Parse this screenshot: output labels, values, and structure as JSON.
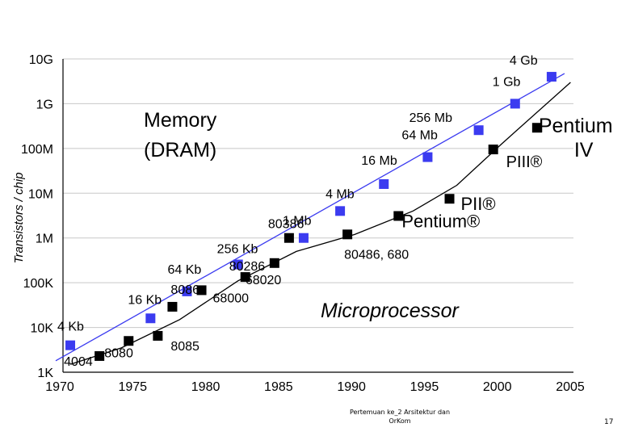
{
  "chart_data": {
    "type": "scatter",
    "ylabel": "Transistors / chip",
    "y_scale": "log",
    "ylim": [
      1000,
      10000000000
    ],
    "xlim": [
      1970,
      2005
    ],
    "x_ticks": [
      "1970",
      "1975",
      "1980",
      "1985",
      "1990",
      "1995",
      "2000",
      "2005"
    ],
    "y_ticks": [
      {
        "value": 1000,
        "label": "1K"
      },
      {
        "value": 10000,
        "label": "10K"
      },
      {
        "value": 100000,
        "label": "100K"
      },
      {
        "value": 1000000,
        "label": "1M"
      },
      {
        "value": 10000000,
        "label": "10M"
      },
      {
        "value": 100000000,
        "label": "100M"
      },
      {
        "value": 1000000000,
        "label": "1G"
      },
      {
        "value": 10000000000,
        "label": "10G"
      }
    ],
    "grid": true,
    "annotations": [
      "Memory",
      "(DRAM)",
      "Microprocessor"
    ],
    "series": [
      {
        "color": "#3b3bf0",
        "marker": "square",
        "points": [
          {
            "x": 1970.5,
            "y": 4000,
            "label": "4 Kb"
          },
          {
            "x": 1976,
            "y": 16000,
            "label": "16 Kb"
          },
          {
            "x": 1978.5,
            "y": 64000,
            "label": "64 Kb"
          },
          {
            "x": 1982,
            "y": 256000,
            "label": "256 Kb"
          },
          {
            "x": 1986.5,
            "y": 1000000,
            "label": "1 Mb"
          },
          {
            "x": 1989,
            "y": 4000000,
            "label": "4 Mb"
          },
          {
            "x": 1992,
            "y": 16000000,
            "label": "16 Mb"
          },
          {
            "x": 1995,
            "y": 64000000,
            "label": "64 Mb"
          },
          {
            "x": 1998.5,
            "y": 256000000,
            "label": "256 Mb"
          },
          {
            "x": 2001,
            "y": 1000000000,
            "label": "1 Gb"
          },
          {
            "x": 2003.5,
            "y": 4000000000,
            "label": "4 Gb"
          }
        ]
      },
      {
        "color": "#000000",
        "marker": "square",
        "points": [
          {
            "x": 1972.5,
            "y": 2300,
            "label": "4004"
          },
          {
            "x": 1974.5,
            "y": 5000,
            "label": "8080"
          },
          {
            "x": 1976.5,
            "y": 6500,
            "label": "8085"
          },
          {
            "x": 1977.5,
            "y": 29000,
            "label": "8086"
          },
          {
            "x": 1979.5,
            "y": 68000,
            "label": "68000"
          },
          {
            "x": 1982.5,
            "y": 134000,
            "label": "80286"
          },
          {
            "x": 1984.5,
            "y": 275000,
            "label": "68020"
          },
          {
            "x": 1985.5,
            "y": 1000000,
            "label": "80386"
          },
          {
            "x": 1989.5,
            "y": 1200000,
            "label": "80486, 680"
          },
          {
            "x": 1993,
            "y": 3100000,
            "label": "Pentium®"
          },
          {
            "x": 1996.5,
            "y": 7500000,
            "label": "PII®"
          },
          {
            "x": 1999.5,
            "y": 95000000,
            "label": "PIII®"
          },
          {
            "x": 2002.5,
            "y": 290000000,
            "label": "Pentium IV"
          }
        ]
      }
    ]
  },
  "footer": {
    "line1": "Pertemuan ke_2 Arsitektur dan",
    "line2": "OrKom",
    "page_number": "17"
  }
}
